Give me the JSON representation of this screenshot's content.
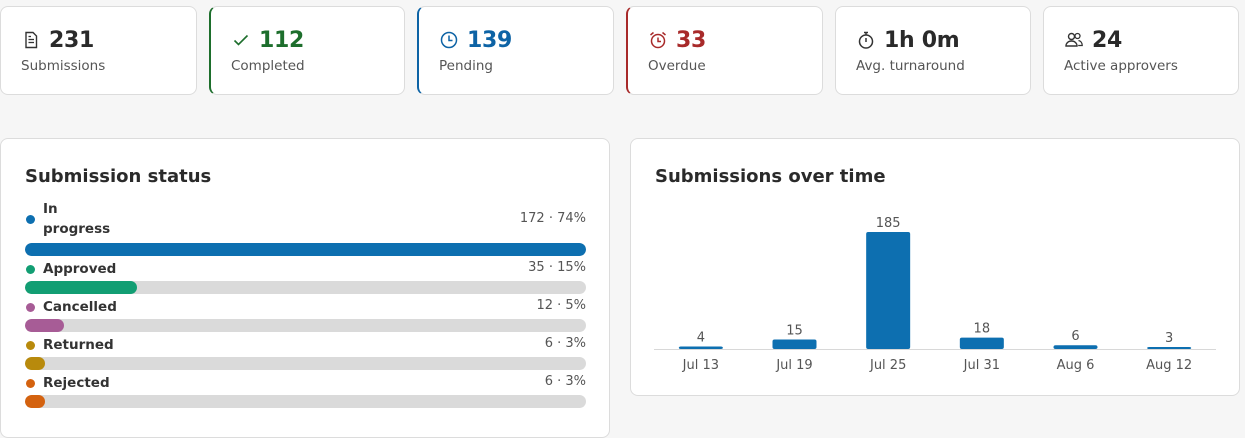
{
  "stats": [
    {
      "value": "231",
      "label": "Submissions",
      "icon": "document-icon",
      "color": "#2a2a2a"
    },
    {
      "value": "112",
      "label": "Completed",
      "icon": "check-icon",
      "color": "#1d6e2c"
    },
    {
      "value": "139",
      "label": "Pending",
      "icon": "clock-icon",
      "color": "#0d63a5"
    },
    {
      "value": "33",
      "label": "Overdue",
      "icon": "alarm-icon",
      "color": "#a82a2a"
    },
    {
      "value": "1h 0m",
      "label": "Avg. turnaround",
      "icon": "stopwatch-icon",
      "color": "#2a2a2a"
    },
    {
      "value": "24",
      "label": "Active approvers",
      "icon": "users-icon",
      "color": "#2a2a2a"
    }
  ],
  "status_card": {
    "title": "Submission status",
    "items": [
      {
        "name": "In progress",
        "value": "172 · 74%",
        "fraction": 1.0,
        "color": "#0d6fb0"
      },
      {
        "name": "Approved",
        "value": "35 · 15%",
        "fraction": 0.2,
        "color": "#129e73"
      },
      {
        "name": "Cancelled",
        "value": "12 · 5%",
        "fraction": 0.07,
        "color": "#a75c96"
      },
      {
        "name": "Returned",
        "value": "6 · 3%",
        "fraction": 0.035,
        "color": "#b88a0c"
      },
      {
        "name": "Rejected",
        "value": "6 · 3%",
        "fraction": 0.035,
        "color": "#d4620f"
      }
    ]
  },
  "time_card": {
    "title": "Submissions over time"
  },
  "chart_data": {
    "type": "bar",
    "categories": [
      "Jul 13",
      "Jul 19",
      "Jul 25",
      "Jul 31",
      "Aug 6",
      "Aug 12"
    ],
    "values": [
      4,
      15,
      185,
      18,
      6,
      3
    ],
    "ylim": [
      0,
      185
    ],
    "color": "#0d6fb0",
    "grid": false
  }
}
